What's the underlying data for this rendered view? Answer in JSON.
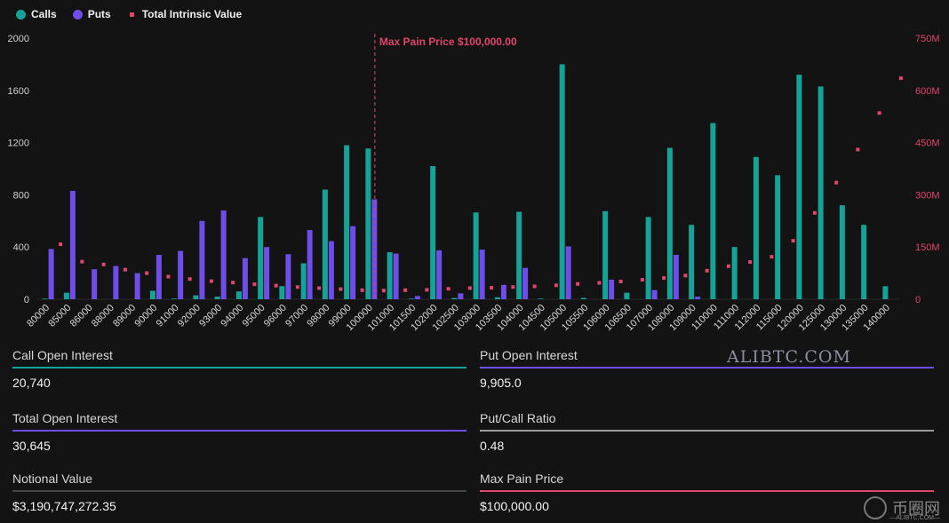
{
  "legend": {
    "calls": "Calls",
    "puts": "Puts",
    "intrinsic": "Total Intrinsic Value"
  },
  "colors": {
    "calls": "#14a396",
    "puts": "#6e4de8",
    "intrinsic": "#e0456b",
    "max_pain_line": "#e0456b"
  },
  "chart_data": {
    "type": "bar",
    "categories": [
      "80000",
      "85000",
      "86000",
      "88000",
      "89000",
      "90000",
      "91000",
      "92000",
      "93000",
      "94000",
      "95000",
      "96000",
      "97000",
      "98000",
      "99000",
      "100000",
      "101000",
      "101500",
      "102000",
      "102500",
      "103000",
      "103500",
      "104000",
      "104500",
      "105000",
      "105500",
      "106000",
      "106500",
      "107000",
      "108000",
      "109000",
      "110000",
      "111000",
      "112000",
      "115000",
      "120000",
      "125000",
      "130000",
      "135000",
      "140000"
    ],
    "series": [
      {
        "name": "Calls",
        "axis": "left",
        "values": [
          5,
          50,
          0,
          0,
          0,
          65,
          5,
          30,
          20,
          60,
          630,
          100,
          275,
          840,
          1180,
          1155,
          360,
          5,
          1020,
          10,
          665,
          15,
          670,
          5,
          1800,
          10,
          675,
          50,
          630,
          1160,
          570,
          1350,
          400,
          1090,
          950,
          1720,
          1630,
          720,
          570,
          100
        ]
      },
      {
        "name": "Puts",
        "axis": "left",
        "values": [
          385,
          830,
          230,
          255,
          200,
          340,
          370,
          600,
          680,
          315,
          400,
          345,
          530,
          445,
          560,
          765,
          350,
          25,
          375,
          45,
          380,
          110,
          240,
          0,
          405,
          0,
          150,
          0,
          70,
          340,
          20,
          0,
          0,
          0,
          0,
          0,
          0,
          0,
          0,
          0
        ]
      },
      {
        "name": "Total Intrinsic Value",
        "axis": "right",
        "type": "scatter",
        "values": [
          158,
          108,
          100,
          85,
          75,
          65,
          58,
          52,
          48,
          43,
          39,
          35,
          32,
          29,
          26,
          25,
          26,
          27,
          30,
          32,
          33,
          35,
          37,
          40,
          44,
          47,
          51,
          56,
          61,
          68,
          82,
          95,
          107,
          122,
          168,
          248,
          335,
          430,
          535,
          635
        ]
      }
    ],
    "y_left_ticks": [
      "0",
      "400",
      "800",
      "1200",
      "1600",
      "2000"
    ],
    "y_left_lim": [
      0,
      2000
    ],
    "y_right_ticks": [
      "0",
      "150M",
      "300M",
      "450M",
      "600M",
      "750M"
    ],
    "y_right_lim": [
      0,
      750
    ],
    "annotation": {
      "label": "Max Pain Price $100,000.00",
      "category": "100000"
    },
    "legend_position": "top-left"
  },
  "stats": {
    "call_oi": {
      "label": "Call Open Interest",
      "value": "20,740",
      "color": "#14a396"
    },
    "put_oi": {
      "label": "Put Open Interest",
      "value": "9,905.0",
      "color": "#6e4de8"
    },
    "total_oi": {
      "label": "Total Open Interest",
      "value": "30,645",
      "color": "#6e4de8"
    },
    "pc_ratio": {
      "label": "Put/Call Ratio",
      "value": "0.48",
      "color": "#9a9a9a"
    },
    "notional": {
      "label": "Notional Value",
      "value": "$3,190,747,272.35",
      "color": "#444444"
    },
    "max_pain": {
      "label": "Max Pain Price",
      "value": "$100,000.00",
      "color": "#e0456b"
    }
  },
  "watermark": "ALIBTC.COM",
  "logo": {
    "name": "币圈网",
    "sub": "—ALIBTC.COM—"
  }
}
